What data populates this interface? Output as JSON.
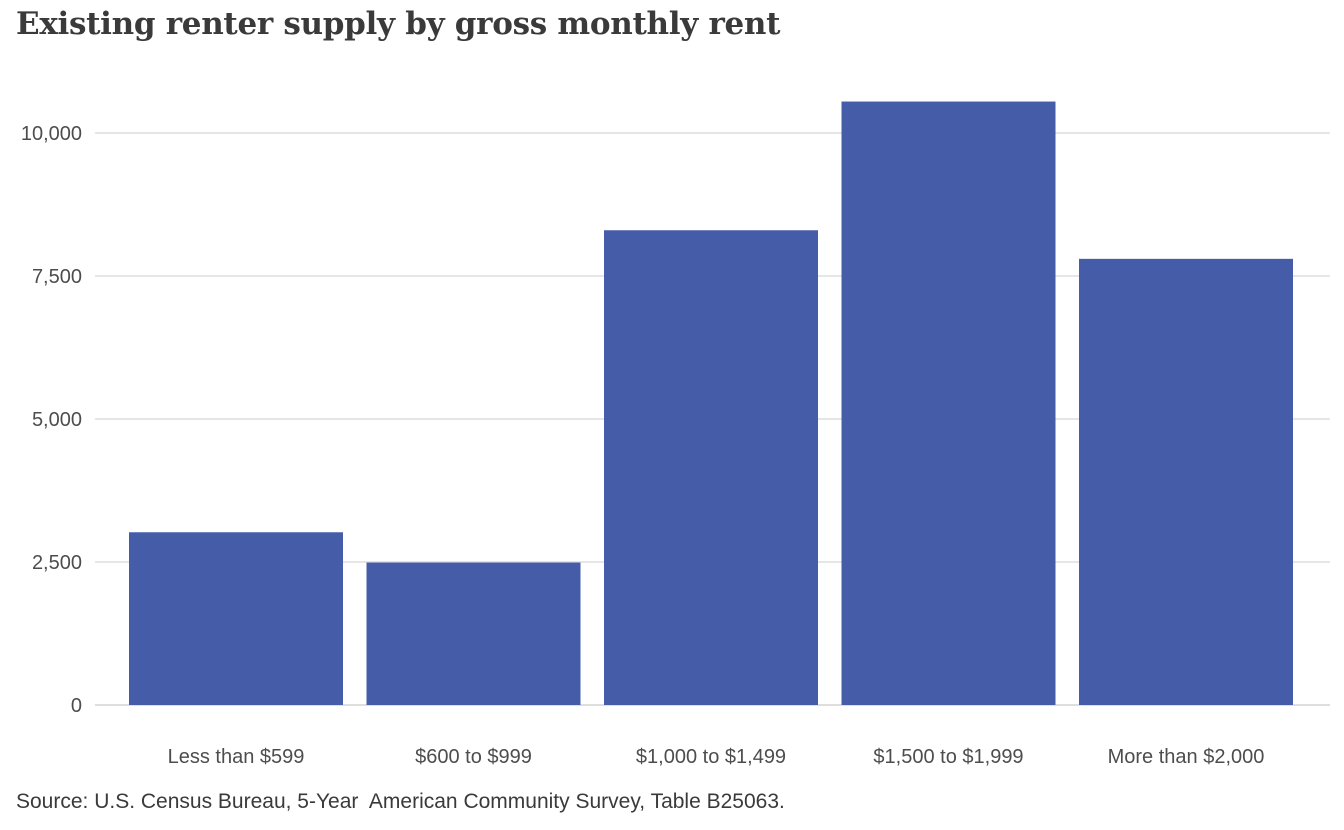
{
  "title": "Existing renter supply by gross monthly rent",
  "source": "Source: U.S. Census Bureau, 5-Year  American Community Survey, Table B25063.",
  "colors": {
    "bar": "#455ca9",
    "grid": "#cccccc",
    "baseline": "#bdbdbd"
  },
  "chart_data": {
    "type": "bar",
    "categories": [
      "Less than $599",
      "$600 to $999",
      "$1,000 to $1,499",
      "$1,500 to $1,999",
      "More than $2,000"
    ],
    "values": [
      3020,
      2490,
      8300,
      10550,
      7800
    ],
    "yticks": [
      0,
      2500,
      5000,
      7500,
      10000
    ],
    "ytick_labels": [
      "0",
      "2,500",
      "5,000",
      "7,500",
      "10,000"
    ],
    "ylim": [
      0,
      11000
    ],
    "title": "Existing renter supply by gross monthly rent",
    "xlabel": "",
    "ylabel": "",
    "grid": true,
    "legend": "none"
  }
}
